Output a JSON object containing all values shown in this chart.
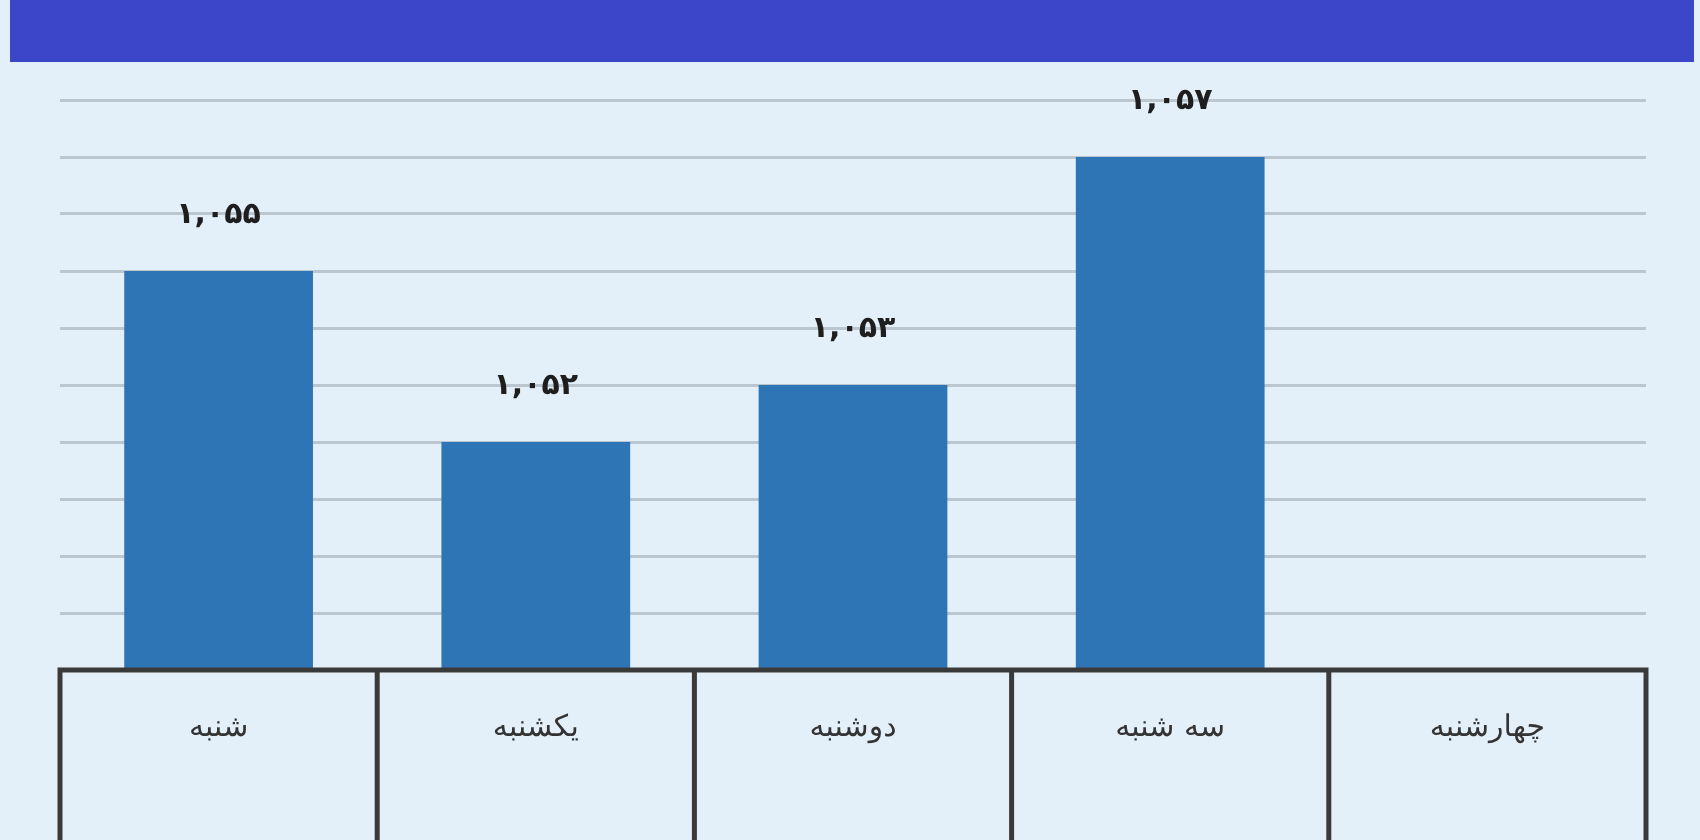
{
  "chart_data": {
    "type": "bar",
    "categories": [
      "شنبه",
      "یکشنبه",
      "دوشنبه",
      "سه شنبه",
      "چهارشنبه"
    ],
    "values": [
      1055,
      1052,
      1053,
      1057,
      null
    ],
    "color": "#2e75b6",
    "value_labels": [
      "۱,۰۵۵",
      "۱,۰۵۲",
      "۱,۰۵۳",
      "۱,۰۵۷",
      null
    ],
    "ylim": [
      1048,
      1058
    ],
    "yticks": [
      {
        "value": 1048,
        "label": null
      },
      {
        "value": 1049,
        "label": null
      },
      {
        "value": 1050,
        "label": null
      },
      {
        "value": 1051,
        "label": null
      },
      {
        "value": 1052,
        "label": null
      },
      {
        "value": 1053,
        "label": null
      },
      {
        "value": 1054,
        "label": null
      },
      {
        "value": 1055,
        "label": null
      },
      {
        "value": 1056,
        "label": null
      },
      {
        "value": 1057,
        "label": null
      },
      {
        "value": 1058,
        "label": null
      }
    ],
    "grid": "y",
    "tick_labels": "x"
  }
}
